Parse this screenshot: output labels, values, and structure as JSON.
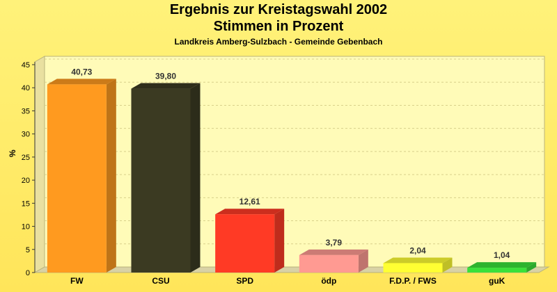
{
  "chart_data": {
    "type": "bar",
    "title": "Ergebnis zur Kreistagswahl 2002",
    "subtitle": "Stimmen in Prozent",
    "caption": "Landkreis Amberg-Sulzbach - Gemeinde Gebenbach",
    "xlabel": "",
    "ylabel": "%",
    "ylim": [
      0,
      45
    ],
    "yticks": [
      0,
      5,
      10,
      15,
      20,
      25,
      30,
      35,
      40,
      45
    ],
    "grid": true,
    "categories": [
      "FW",
      "CSU",
      "SPD",
      "ödp",
      "F.D.P. / FWS",
      "guK"
    ],
    "values": [
      40.73,
      39.8,
      12.61,
      3.79,
      2.04,
      1.04
    ],
    "value_labels": [
      "40,73",
      "39,80",
      "12,61",
      "3,79",
      "2,04",
      "1,04"
    ],
    "colors": [
      "#ff9a1f",
      "#3b3a22",
      "#ff3a25",
      "#ff9a92",
      "#ffff33",
      "#3ae03a"
    ],
    "background_color": "#ffef6a"
  }
}
